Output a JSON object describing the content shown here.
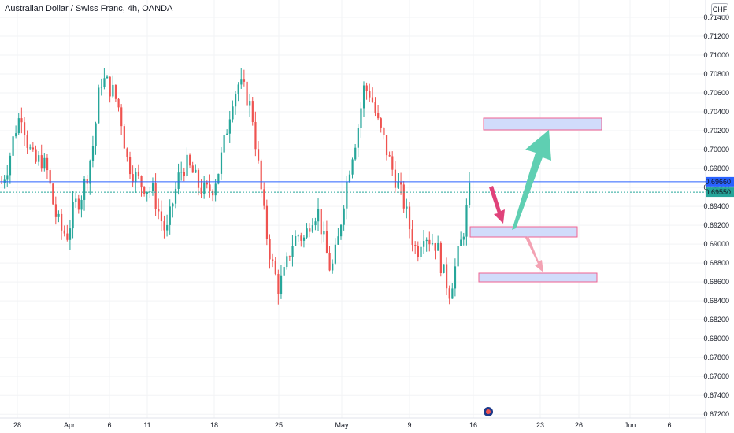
{
  "header": {
    "title": "Australian Dollar / Swiss Franc, 4h, OANDA",
    "currency": "CHF"
  },
  "colors": {
    "up": "#26a69a",
    "down": "#ef5350",
    "hline": "#2962ff",
    "dotline": "#26a69a",
    "zone_fill": "#d1dcfb",
    "zone_border": "#f06292",
    "arrow_teal": "#5fcfb2",
    "arrow_pink_dark": "#e0427a",
    "arrow_pink_light": "#f3a2b3"
  },
  "chart_data": {
    "type": "candlestick",
    "title": "Australian Dollar / Swiss Franc, 4h, OANDA",
    "ylim": [
      0.6716,
      0.715
    ],
    "y_ticks": [
      "0.71400",
      "0.71200",
      "0.71000",
      "0.70800",
      "0.70600",
      "0.70400",
      "0.70200",
      "0.70000",
      "0.69800",
      "0.69600",
      "0.69400",
      "0.69200",
      "0.69000",
      "0.68800",
      "0.68600",
      "0.68400",
      "0.68200",
      "0.68000",
      "0.67800",
      "0.67600",
      "0.67400",
      "0.67200"
    ],
    "x_ticks": [
      "28",
      "Apr",
      "6",
      "11",
      "18",
      "25",
      "May",
      "9",
      "16",
      "23",
      "26",
      "Jun",
      "6"
    ],
    "price_labels": {
      "horizontal_level": "0.69660",
      "last_price": "0.69550"
    },
    "approx_close_path": [
      0.6965,
      0.6985,
      0.702,
      0.704,
      0.7005,
      0.6985,
      0.699,
      0.6975,
      0.6935,
      0.6915,
      0.691,
      0.694,
      0.695,
      0.6975,
      0.701,
      0.7075,
      0.707,
      0.706,
      0.704,
      0.699,
      0.6975,
      0.6965,
      0.696,
      0.6955,
      0.693,
      0.691,
      0.6945,
      0.6975,
      0.6985,
      0.6975,
      0.696,
      0.6955,
      0.696,
      0.698,
      0.7015,
      0.7055,
      0.707,
      0.706,
      0.704,
      0.698,
      0.692,
      0.688,
      0.6855,
      0.687,
      0.69,
      0.691,
      0.6905,
      0.693,
      0.6935,
      0.69,
      0.687,
      0.69,
      0.695,
      0.699,
      0.702,
      0.7065,
      0.706,
      0.703,
      0.701,
      0.6985,
      0.6965,
      0.6945,
      0.6915,
      0.689,
      0.6915,
      0.6905,
      0.69,
      0.687,
      0.685,
      0.688,
      0.691,
      0.6955
    ]
  }
}
